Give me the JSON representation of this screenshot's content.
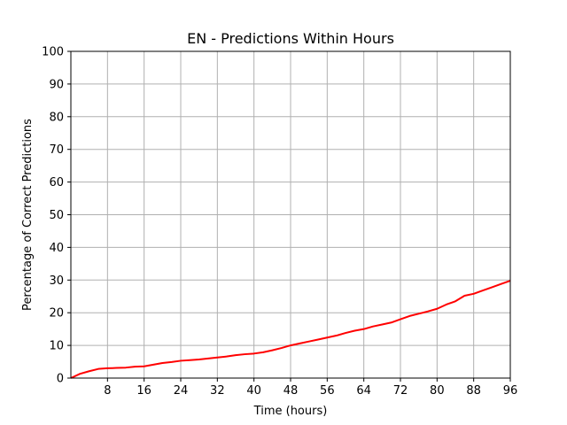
{
  "chart_data": {
    "type": "line",
    "title": "EN - Predictions Within Hours",
    "xlabel": "Time (hours)",
    "ylabel": "Percentage of Correct Predictions",
    "xlim": [
      0,
      96
    ],
    "ylim": [
      0,
      100
    ],
    "xticks": [
      8,
      16,
      24,
      32,
      40,
      48,
      56,
      64,
      72,
      80,
      88,
      96
    ],
    "yticks": [
      0,
      10,
      20,
      30,
      40,
      50,
      60,
      70,
      80,
      90,
      100
    ],
    "grid": true,
    "series": [
      {
        "color": "#ff0000",
        "x": [
          0,
          2,
          4,
          6,
          8,
          10,
          12,
          14,
          16,
          18,
          20,
          22,
          24,
          26,
          28,
          30,
          32,
          34,
          36,
          38,
          40,
          42,
          44,
          46,
          48,
          50,
          52,
          54,
          56,
          58,
          60,
          62,
          64,
          66,
          68,
          70,
          72,
          74,
          76,
          78,
          80,
          82,
          84,
          86,
          88,
          90,
          92,
          94,
          96
        ],
        "y": [
          0,
          1.3,
          2.1,
          2.8,
          3.0,
          3.1,
          3.2,
          3.5,
          3.6,
          4.1,
          4.6,
          4.9,
          5.3,
          5.5,
          5.7,
          6.0,
          6.3,
          6.6,
          7.0,
          7.3,
          7.5,
          7.9,
          8.5,
          9.2,
          10.0,
          10.6,
          11.2,
          11.8,
          12.4,
          13.0,
          13.8,
          14.5,
          15.0,
          15.8,
          16.4,
          17.0,
          18.0,
          19.0,
          19.7,
          20.4,
          21.2,
          22.5,
          23.5,
          25.2,
          25.8,
          26.8,
          27.8,
          28.8,
          29.8
        ]
      }
    ]
  }
}
